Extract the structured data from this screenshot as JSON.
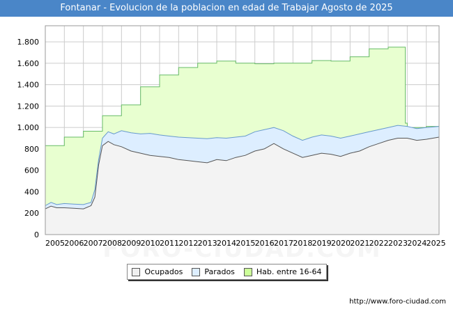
{
  "title": "Fontanar - Evolucion de la poblacion en edad de Trabajar Agosto de 2025",
  "footer_url": "http://www.foro-ciudad.com",
  "watermark": "FORO-CIUDAD.COM",
  "legend": [
    {
      "label": "Ocupados",
      "color": "#f0f0f0"
    },
    {
      "label": "Parados",
      "color": "#ddeeff"
    },
    {
      "label": "Hab. entre 16-64",
      "color": "#ccff99"
    }
  ],
  "colors": {
    "title_bg": "#4a86c8",
    "hab_fill": "#e8ffd0",
    "hab_line": "#66bb66",
    "parados_fill": "#ddeeff",
    "parados_line": "#6699cc",
    "ocupados_fill": "#f3f3f3",
    "ocupados_line": "#555555",
    "grid": "#cccccc"
  },
  "chart_data": {
    "type": "area",
    "title": "Fontanar - Evolucion de la poblacion en edad de Trabajar Agosto de 2025",
    "xlabel": "",
    "ylabel": "",
    "xlim": [
      2005,
      2025.67
    ],
    "ylim": [
      0,
      1950
    ],
    "yticks": [
      0,
      200,
      400,
      600,
      800,
      1000,
      1200,
      1400,
      1600,
      1800
    ],
    "ytick_labels": [
      "0",
      "200",
      "400",
      "600",
      "800",
      "1.000",
      "1.200",
      "1.400",
      "1.600",
      "1.800"
    ],
    "xticks": [
      2005,
      2006,
      2007,
      2008,
      2009,
      2010,
      2011,
      2012,
      2013,
      2014,
      2015,
      2016,
      2017,
      2018,
      2019,
      2020,
      2021,
      2022,
      2023,
      2024,
      2025
    ],
    "grid": true,
    "legend_position": "bottom",
    "series": [
      {
        "name": "Hab. entre 16-64",
        "step": true,
        "x": [
          2005,
          2006,
          2007,
          2008,
          2009,
          2010,
          2011,
          2012,
          2013,
          2014,
          2015,
          2016,
          2017,
          2018,
          2019,
          2020,
          2021,
          2022,
          2023,
          2023.9,
          2024,
          2025,
          2025.67
        ],
        "values": [
          830,
          910,
          965,
          1110,
          1210,
          1380,
          1490,
          1560,
          1600,
          1620,
          1600,
          1595,
          1600,
          1600,
          1625,
          1620,
          1660,
          1735,
          1750,
          1040,
          1000,
          1010,
          1010
        ]
      },
      {
        "name": "Parados",
        "x": [
          2005,
          2005.3,
          2005.6,
          2006,
          2006.5,
          2007,
          2007.4,
          2007.6,
          2007.8,
          2008,
          2008.3,
          2008.6,
          2009,
          2009.5,
          2010,
          2010.5,
          2011,
          2011.5,
          2012,
          2012.5,
          2013,
          2013.5,
          2014,
          2014.5,
          2015,
          2015.5,
          2016,
          2016.5,
          2017,
          2017.5,
          2018,
          2018.5,
          2019,
          2019.5,
          2020,
          2020.5,
          2021,
          2021.5,
          2022,
          2022.5,
          2023,
          2023.5,
          2024,
          2024.5,
          2025,
          2025.67
        ],
        "values": [
          270,
          300,
          280,
          290,
          285,
          280,
          300,
          420,
          700,
          900,
          960,
          940,
          970,
          950,
          940,
          945,
          930,
          920,
          910,
          905,
          900,
          895,
          905,
          900,
          910,
          920,
          960,
          980,
          1000,
          970,
          920,
          880,
          910,
          930,
          920,
          900,
          920,
          940,
          960,
          980,
          1000,
          1020,
          1010,
          990,
          1000,
          1010
        ]
      },
      {
        "name": "Ocupados",
        "x": [
          2005,
          2005.3,
          2005.6,
          2006,
          2006.5,
          2007,
          2007.4,
          2007.6,
          2007.8,
          2008,
          2008.3,
          2008.6,
          2009,
          2009.5,
          2010,
          2010.5,
          2011,
          2011.5,
          2012,
          2012.5,
          2013,
          2013.5,
          2014,
          2014.5,
          2015,
          2015.5,
          2016,
          2016.5,
          2017,
          2017.5,
          2018,
          2018.5,
          2019,
          2019.5,
          2020,
          2020.5,
          2021,
          2021.5,
          2022,
          2022.5,
          2023,
          2023.5,
          2024,
          2024.5,
          2025,
          2025.67
        ],
        "values": [
          240,
          265,
          250,
          250,
          245,
          240,
          270,
          350,
          650,
          830,
          870,
          840,
          820,
          780,
          760,
          740,
          730,
          720,
          700,
          690,
          680,
          670,
          700,
          690,
          720,
          740,
          780,
          800,
          850,
          800,
          760,
          720,
          740,
          760,
          750,
          730,
          760,
          780,
          820,
          850,
          880,
          900,
          900,
          880,
          890,
          910
        ]
      }
    ]
  }
}
